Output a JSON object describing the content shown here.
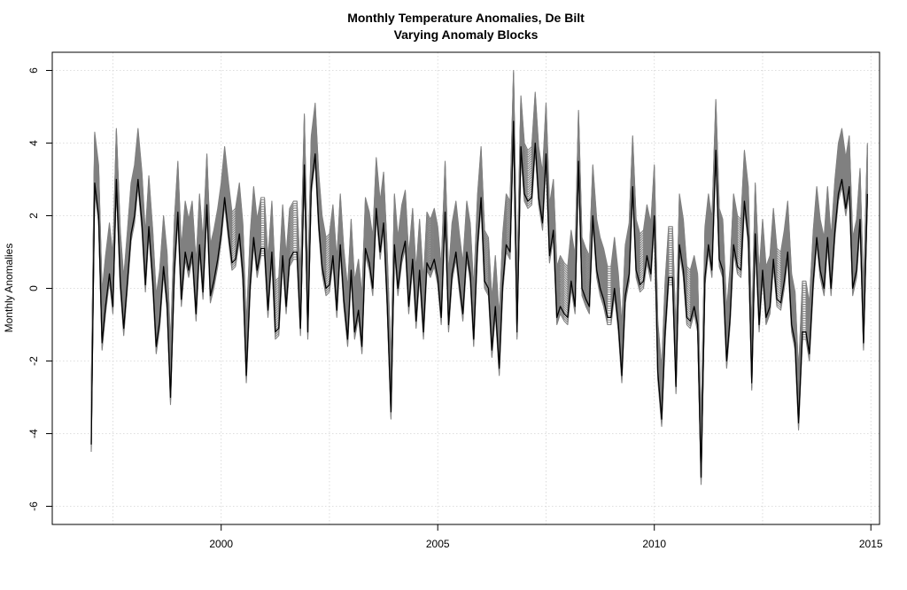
{
  "chart_data": {
    "type": "line",
    "title": "Monthly Temperature Anomalies, De Bilt",
    "subtitle": "Varying Anomaly Blocks",
    "xlabel": "",
    "ylabel": "Monthly Anomalies",
    "xlim": [
      1996.1,
      2015.2
    ],
    "ylim": [
      -6.5,
      6.5
    ],
    "x_ticks": [
      2000,
      2005,
      2010,
      2015
    ],
    "y_ticks": [
      -6,
      -4,
      -2,
      0,
      2,
      4,
      6
    ],
    "x_tick_labels": [
      "2000",
      "2005",
      "2010",
      "2015"
    ],
    "y_tick_labels": [
      "-6",
      "-4",
      "-2",
      "0",
      "2",
      "4",
      "6"
    ],
    "grid": true,
    "colors": {
      "main_series": "#000000",
      "ensemble": "#808080",
      "grid": "#d3d3d3",
      "frame": "#000000"
    },
    "band_upper_offset": 1.4,
    "band_lower_offset": -0.2,
    "series": [
      {
        "values": [
          [
            1997.0,
            -4.3
          ],
          [
            1997.08,
            2.9
          ],
          [
            1997.17,
            2.0
          ],
          [
            1997.25,
            -1.5
          ],
          [
            1997.33,
            -0.5
          ],
          [
            1997.42,
            0.4
          ],
          [
            1997.5,
            -0.5
          ],
          [
            1997.58,
            3.0
          ],
          [
            1997.67,
            0.2
          ],
          [
            1997.75,
            -1.1
          ],
          [
            1997.83,
            0.1
          ],
          [
            1997.92,
            1.5
          ],
          [
            1998.0,
            2.0
          ],
          [
            1998.08,
            3.0
          ],
          [
            1998.17,
            1.8
          ],
          [
            1998.25,
            0.1
          ],
          [
            1998.33,
            1.7
          ],
          [
            1998.42,
            0.2
          ],
          [
            1998.5,
            -1.6
          ],
          [
            1998.58,
            -0.9
          ],
          [
            1998.67,
            0.6
          ],
          [
            1998.75,
            -0.4
          ],
          [
            1998.83,
            -3.0
          ],
          [
            1998.92,
            0.5
          ],
          [
            1999.0,
            2.1
          ],
          [
            1999.08,
            -0.3
          ],
          [
            1999.17,
            1.0
          ],
          [
            1999.25,
            0.5
          ],
          [
            1999.33,
            1.0
          ],
          [
            1999.42,
            -0.7
          ],
          [
            1999.5,
            1.2
          ],
          [
            1999.58,
            -0.1
          ],
          [
            1999.67,
            2.3
          ],
          [
            1999.75,
            -0.2
          ],
          [
            1999.83,
            0.2
          ],
          [
            1999.92,
            0.8
          ],
          [
            2000.0,
            1.5
          ],
          [
            2000.08,
            2.5
          ],
          [
            2000.17,
            1.5
          ],
          [
            2000.25,
            0.7
          ],
          [
            2000.33,
            0.8
          ],
          [
            2000.42,
            1.5
          ],
          [
            2000.5,
            0.4
          ],
          [
            2000.58,
            -2.4
          ],
          [
            2000.67,
            0.1
          ],
          [
            2000.75,
            1.4
          ],
          [
            2000.83,
            0.5
          ],
          [
            2000.92,
            1.1
          ],
          [
            2001.0,
            1.1
          ],
          [
            2001.08,
            -0.6
          ],
          [
            2001.17,
            1.0
          ],
          [
            2001.25,
            -1.2
          ],
          [
            2001.33,
            -1.1
          ],
          [
            2001.42,
            0.9
          ],
          [
            2001.5,
            -0.5
          ],
          [
            2001.58,
            0.8
          ],
          [
            2001.67,
            1.0
          ],
          [
            2001.75,
            1.0
          ],
          [
            2001.83,
            -1.1
          ],
          [
            2001.92,
            3.4
          ],
          [
            2002.0,
            -1.2
          ],
          [
            2002.08,
            2.8
          ],
          [
            2002.17,
            3.7
          ],
          [
            2002.25,
            1.8
          ],
          [
            2002.33,
            0.6
          ],
          [
            2002.42,
            0.0
          ],
          [
            2002.5,
            0.1
          ],
          [
            2002.58,
            0.9
          ],
          [
            2002.67,
            -0.6
          ],
          [
            2002.75,
            1.2
          ],
          [
            2002.83,
            -0.3
          ],
          [
            2002.92,
            -1.4
          ],
          [
            2003.0,
            0.5
          ],
          [
            2003.08,
            -1.2
          ],
          [
            2003.17,
            -0.6
          ],
          [
            2003.25,
            -1.6
          ],
          [
            2003.33,
            1.1
          ],
          [
            2003.42,
            0.7
          ],
          [
            2003.5,
            0.0
          ],
          [
            2003.58,
            2.2
          ],
          [
            2003.67,
            1.0
          ],
          [
            2003.75,
            1.8
          ],
          [
            2003.83,
            -0.3
          ],
          [
            2003.92,
            -3.4
          ],
          [
            2004.0,
            1.2
          ],
          [
            2004.08,
            0.0
          ],
          [
            2004.17,
            0.9
          ],
          [
            2004.25,
            1.3
          ],
          [
            2004.33,
            -0.5
          ],
          [
            2004.42,
            0.8
          ],
          [
            2004.5,
            -0.9
          ],
          [
            2004.58,
            0.5
          ],
          [
            2004.67,
            -1.2
          ],
          [
            2004.75,
            0.7
          ],
          [
            2004.83,
            0.5
          ],
          [
            2004.92,
            0.8
          ],
          [
            2005.0,
            0.3
          ],
          [
            2005.08,
            -0.8
          ],
          [
            2005.17,
            2.1
          ],
          [
            2005.25,
            -1.0
          ],
          [
            2005.33,
            0.4
          ],
          [
            2005.42,
            1.0
          ],
          [
            2005.5,
            0.1
          ],
          [
            2005.58,
            -0.7
          ],
          [
            2005.67,
            1.0
          ],
          [
            2005.75,
            0.4
          ],
          [
            2005.83,
            -1.4
          ],
          [
            2005.92,
            1.2
          ],
          [
            2006.0,
            2.5
          ],
          [
            2006.08,
            0.2
          ],
          [
            2006.17,
            0.0
          ],
          [
            2006.25,
            -1.7
          ],
          [
            2006.33,
            -0.5
          ],
          [
            2006.42,
            -2.2
          ],
          [
            2006.5,
            0.1
          ],
          [
            2006.58,
            1.2
          ],
          [
            2006.67,
            1.0
          ],
          [
            2006.75,
            4.6
          ],
          [
            2006.83,
            -1.2
          ],
          [
            2006.92,
            3.9
          ],
          [
            2007.0,
            2.6
          ],
          [
            2007.08,
            2.4
          ],
          [
            2007.17,
            2.5
          ],
          [
            2007.25,
            4.0
          ],
          [
            2007.33,
            2.5
          ],
          [
            2007.42,
            1.8
          ],
          [
            2007.5,
            3.7
          ],
          [
            2007.58,
            0.9
          ],
          [
            2007.67,
            1.6
          ],
          [
            2007.75,
            -0.8
          ],
          [
            2007.83,
            -0.5
          ],
          [
            2007.92,
            -0.7
          ],
          [
            2008.0,
            -0.8
          ],
          [
            2008.08,
            0.2
          ],
          [
            2008.17,
            -0.5
          ],
          [
            2008.25,
            3.5
          ],
          [
            2008.33,
            0.0
          ],
          [
            2008.42,
            -0.3
          ],
          [
            2008.5,
            -0.5
          ],
          [
            2008.58,
            2.0
          ],
          [
            2008.67,
            0.5
          ],
          [
            2008.75,
            0.0
          ],
          [
            2008.83,
            -0.3
          ],
          [
            2008.92,
            -0.8
          ],
          [
            2009.0,
            -0.8
          ],
          [
            2009.08,
            0.0
          ],
          [
            2009.17,
            -1.0
          ],
          [
            2009.25,
            -2.4
          ],
          [
            2009.33,
            -0.2
          ],
          [
            2009.42,
            0.4
          ],
          [
            2009.5,
            2.8
          ],
          [
            2009.58,
            0.5
          ],
          [
            2009.67,
            0.1
          ],
          [
            2009.75,
            0.2
          ],
          [
            2009.83,
            0.9
          ],
          [
            2009.92,
            0.4
          ],
          [
            2010.0,
            2.0
          ],
          [
            2010.08,
            -2.3
          ],
          [
            2010.17,
            -3.6
          ],
          [
            2010.25,
            -1.2
          ],
          [
            2010.33,
            0.3
          ],
          [
            2010.42,
            0.3
          ],
          [
            2010.5,
            -2.7
          ],
          [
            2010.58,
            1.2
          ],
          [
            2010.67,
            0.5
          ],
          [
            2010.75,
            -0.8
          ],
          [
            2010.83,
            -0.9
          ],
          [
            2010.92,
            -0.5
          ],
          [
            2011.0,
            -1.0
          ],
          [
            2011.08,
            -5.2
          ],
          [
            2011.17,
            0.3
          ],
          [
            2011.25,
            1.2
          ],
          [
            2011.33,
            0.5
          ],
          [
            2011.42,
            3.8
          ],
          [
            2011.5,
            0.8
          ],
          [
            2011.58,
            0.5
          ],
          [
            2011.67,
            -2.0
          ],
          [
            2011.75,
            -0.8
          ],
          [
            2011.83,
            1.2
          ],
          [
            2011.92,
            0.6
          ],
          [
            2012.0,
            0.5
          ],
          [
            2012.08,
            2.4
          ],
          [
            2012.17,
            1.4
          ],
          [
            2012.25,
            -2.6
          ],
          [
            2012.33,
            1.5
          ],
          [
            2012.42,
            -1.0
          ],
          [
            2012.5,
            0.5
          ],
          [
            2012.58,
            -0.8
          ],
          [
            2012.67,
            -0.5
          ],
          [
            2012.75,
            0.8
          ],
          [
            2012.83,
            -0.3
          ],
          [
            2012.92,
            -0.4
          ],
          [
            2013.0,
            0.2
          ],
          [
            2013.08,
            1.0
          ],
          [
            2013.17,
            -1.0
          ],
          [
            2013.25,
            -1.5
          ],
          [
            2013.33,
            -3.7
          ],
          [
            2013.42,
            -1.2
          ],
          [
            2013.5,
            -1.2
          ],
          [
            2013.58,
            -1.8
          ],
          [
            2013.67,
            0.2
          ],
          [
            2013.75,
            1.4
          ],
          [
            2013.83,
            0.5
          ],
          [
            2013.92,
            0.0
          ],
          [
            2014.0,
            1.4
          ],
          [
            2014.08,
            0.0
          ],
          [
            2014.17,
            1.6
          ],
          [
            2014.25,
            2.6
          ],
          [
            2014.33,
            3.0
          ],
          [
            2014.42,
            2.2
          ],
          [
            2014.5,
            2.8
          ],
          [
            2014.58,
            0.0
          ],
          [
            2014.67,
            0.5
          ],
          [
            2014.75,
            1.9
          ],
          [
            2014.83,
            -1.5
          ],
          [
            2014.92,
            2.6
          ]
        ]
      }
    ]
  }
}
